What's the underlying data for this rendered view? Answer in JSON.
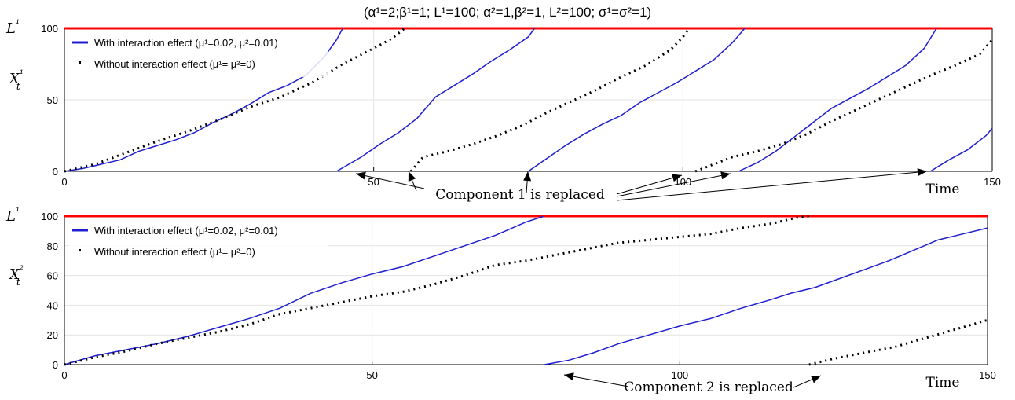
{
  "title": "(α¹=2;β¹=1; L¹=100; α²=1,β²=1, L²=100; σ¹=σ²=1)",
  "annotation_time_label": "Time",
  "chart_data": [
    {
      "type": "line",
      "panel": "top",
      "ylabel": "X¹t",
      "threshold_label": "L¹",
      "threshold": 100,
      "xlim": [
        0,
        150
      ],
      "ylim": [
        0,
        100
      ],
      "xticks": [
        0,
        50,
        100,
        150
      ],
      "yticks": [
        0,
        50,
        100
      ],
      "grid": true,
      "legend_position": "top-left",
      "annotation": "Component 1 is replaced",
      "legend": [
        "With interaction effect (μ¹=0.02, μ²=0.01)",
        "Without interaction effect (μ¹= μ²=0)"
      ],
      "series": [
        {
          "name": "With interaction effect (μ¹=0.02, μ²=0.01)",
          "style": "solid",
          "color": "#1f1fd0",
          "segments": [
            [
              [
                0,
                0
              ],
              [
                3,
                2
              ],
              [
                6,
                5
              ],
              [
                9,
                8
              ],
              [
                12,
                14
              ],
              [
                15,
                18
              ],
              [
                18,
                22
              ],
              [
                21,
                27
              ],
              [
                24,
                34
              ],
              [
                27,
                40
              ],
              [
                30,
                47
              ],
              [
                33,
                55
              ],
              [
                36,
                60
              ],
              [
                39,
                67
              ],
              [
                42,
                80
              ],
              [
                44,
                92
              ],
              [
                45,
                100
              ]
            ],
            [
              [
                44,
                0
              ],
              [
                48,
                10
              ],
              [
                51,
                19
              ],
              [
                54,
                27
              ],
              [
                57,
                37
              ],
              [
                60,
                52
              ],
              [
                63,
                60
              ],
              [
                66,
                68
              ],
              [
                69,
                77
              ],
              [
                72,
                85
              ],
              [
                75,
                94
              ],
              [
                76,
                100
              ]
            ],
            [
              [
                75,
                0
              ],
              [
                78,
                9
              ],
              [
                81,
                18
              ],
              [
                84,
                26
              ],
              [
                87,
                33
              ],
              [
                90,
                39
              ],
              [
                93,
                48
              ],
              [
                96,
                55
              ],
              [
                99,
                62
              ],
              [
                102,
                70
              ],
              [
                105,
                78
              ],
              [
                108,
                90
              ],
              [
                110,
                100
              ]
            ],
            [
              [
                109,
                0
              ],
              [
                112,
                6
              ],
              [
                115,
                14
              ],
              [
                118,
                24
              ],
              [
                121,
                34
              ],
              [
                124,
                44
              ],
              [
                127,
                51
              ],
              [
                130,
                58
              ],
              [
                133,
                66
              ],
              [
                136,
                74
              ],
              [
                139,
                86
              ],
              [
                141,
                100
              ]
            ],
            [
              [
                140,
                0
              ],
              [
                143,
                8
              ],
              [
                146,
                15
              ],
              [
                149,
                25
              ],
              [
                150,
                30
              ]
            ]
          ]
        },
        {
          "name": "Without interaction effect (μ¹= μ²=0)",
          "style": "dotted",
          "color": "#000000",
          "segments": [
            [
              [
                0,
                0
              ],
              [
                5,
                5
              ],
              [
                10,
                13
              ],
              [
                15,
                21
              ],
              [
                20,
                28
              ],
              [
                25,
                36
              ],
              [
                30,
                45
              ],
              [
                35,
                52
              ],
              [
                40,
                62
              ],
              [
                45,
                75
              ],
              [
                50,
                86
              ],
              [
                53,
                93
              ],
              [
                55,
                100
              ]
            ],
            [
              [
                56,
                0
              ],
              [
                58,
                10
              ],
              [
                62,
                14
              ],
              [
                66,
                19
              ],
              [
                70,
                25
              ],
              [
                74,
                32
              ],
              [
                78,
                41
              ],
              [
                82,
                49
              ],
              [
                86,
                57
              ],
              [
                90,
                66
              ],
              [
                94,
                74
              ],
              [
                98,
                85
              ],
              [
                100,
                94
              ],
              [
                101,
                100
              ]
            ],
            [
              [
                102,
                0
              ],
              [
                105,
                5
              ],
              [
                108,
                10
              ],
              [
                112,
                14
              ],
              [
                116,
                19
              ],
              [
                120,
                26
              ],
              [
                124,
                35
              ],
              [
                128,
                43
              ],
              [
                132,
                51
              ],
              [
                136,
                59
              ],
              [
                140,
                67
              ],
              [
                144,
                74
              ],
              [
                148,
                82
              ],
              [
                150,
                92
              ]
            ]
          ]
        }
      ]
    },
    {
      "type": "line",
      "panel": "bottom",
      "ylabel": "X²t",
      "threshold_label": "L¹",
      "threshold": 100,
      "xlim": [
        0,
        150
      ],
      "ylim": [
        0,
        100
      ],
      "xticks": [
        0,
        50,
        100,
        150
      ],
      "yticks": [
        0,
        20,
        40,
        60,
        80,
        100
      ],
      "grid": true,
      "legend_position": "top-left",
      "annotation": "Component 2 is replaced",
      "legend": [
        "With interaction effect (μ¹=0.02, μ²=0.01)",
        "Without interaction effect (μ¹= μ²=0)"
      ],
      "series": [
        {
          "name": "With interaction effect (μ¹=0.02, μ²=0.01)",
          "style": "solid",
          "color": "#1f1fd0",
          "segments": [
            [
              [
                0,
                0
              ],
              [
                5,
                6
              ],
              [
                10,
                10
              ],
              [
                15,
                14
              ],
              [
                20,
                19
              ],
              [
                25,
                25
              ],
              [
                30,
                31
              ],
              [
                35,
                38
              ],
              [
                40,
                48
              ],
              [
                45,
                55
              ],
              [
                50,
                61
              ],
              [
                55,
                66
              ],
              [
                60,
                73
              ],
              [
                65,
                80
              ],
              [
                70,
                87
              ],
              [
                75,
                96
              ],
              [
                78,
                100
              ]
            ],
            [
              [
                78,
                0
              ],
              [
                82,
                3
              ],
              [
                86,
                8
              ],
              [
                90,
                14
              ],
              [
                95,
                20
              ],
              [
                100,
                26
              ],
              [
                105,
                31
              ],
              [
                110,
                38
              ],
              [
                115,
                44
              ],
              [
                118,
                48
              ],
              [
                122,
                52
              ],
              [
                126,
                58
              ],
              [
                130,
                64
              ],
              [
                134,
                70
              ],
              [
                138,
                77
              ],
              [
                142,
                84
              ],
              [
                146,
                88
              ],
              [
                150,
                92
              ]
            ]
          ]
        },
        {
          "name": "Without interaction effect (μ¹= μ²=0)",
          "style": "dotted",
          "color": "#000000",
          "segments": [
            [
              [
                0,
                0
              ],
              [
                5,
                5
              ],
              [
                10,
                9
              ],
              [
                15,
                14
              ],
              [
                20,
                18
              ],
              [
                25,
                22
              ],
              [
                30,
                27
              ],
              [
                35,
                34
              ],
              [
                40,
                38
              ],
              [
                45,
                42
              ],
              [
                50,
                46
              ],
              [
                55,
                49
              ],
              [
                60,
                54
              ],
              [
                65,
                60
              ],
              [
                70,
                67
              ],
              [
                75,
                70
              ],
              [
                80,
                74
              ],
              [
                85,
                78
              ],
              [
                90,
                82
              ],
              [
                95,
                84
              ],
              [
                100,
                86
              ],
              [
                105,
                88
              ],
              [
                110,
                92
              ],
              [
                115,
                95
              ],
              [
                119,
                99
              ],
              [
                121,
                100
              ]
            ],
            [
              [
                121,
                0
              ],
              [
                125,
                4
              ],
              [
                130,
                8
              ],
              [
                135,
                12
              ],
              [
                140,
                18
              ],
              [
                145,
                24
              ],
              [
                150,
                30
              ]
            ]
          ]
        }
      ]
    }
  ]
}
